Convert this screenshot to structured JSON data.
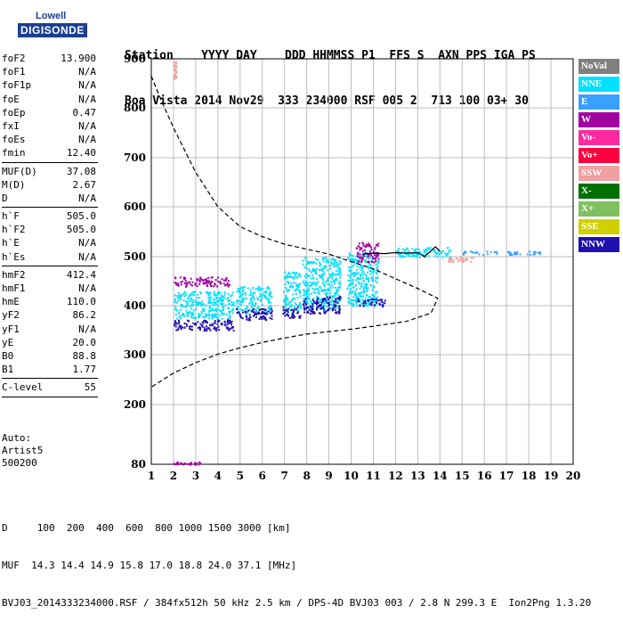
{
  "logo": {
    "line1": "Lowell",
    "line2": "DIGISONDE"
  },
  "header": {
    "line1": "Station    YYYY DAY    DDD HHMMSS P1  FFS S  AXN PPS IGA PS",
    "line2": "Boa Vista 2014 Nov29  333 234000 RSF 005 2  713 100 03+ 30"
  },
  "params": [
    {
      "label": "foF2",
      "value": "13.900"
    },
    {
      "label": "foF1",
      "value": "N/A"
    },
    {
      "label": "foF1p",
      "value": "N/A"
    },
    {
      "label": "foE",
      "value": "N/A"
    },
    {
      "label": "foEp",
      "value": "0.47"
    },
    {
      "label": "fxI",
      "value": "N/A"
    },
    {
      "label": "foEs",
      "value": "N/A"
    },
    {
      "label": "fmin",
      "value": "12.40"
    },
    {
      "label": "MUF(D)",
      "value": "37.08"
    },
    {
      "label": "M(D)",
      "value": "2.67"
    },
    {
      "label": "D",
      "value": "N/A"
    },
    {
      "label": "h`F",
      "value": "505.0"
    },
    {
      "label": "h`F2",
      "value": "505.0"
    },
    {
      "label": "h`E",
      "value": "N/A"
    },
    {
      "label": "h`Es",
      "value": "N/A"
    },
    {
      "label": "hmF2",
      "value": "412.4"
    },
    {
      "label": "hmF1",
      "value": "N/A"
    },
    {
      "label": "hmE",
      "value": "110.0"
    },
    {
      "label": "yF2",
      "value": "86.2"
    },
    {
      "label": "yF1",
      "value": "N/A"
    },
    {
      "label": "yE",
      "value": "20.0"
    },
    {
      "label": "B0",
      "value": "88.8"
    },
    {
      "label": "B1",
      "value": "1.77"
    },
    {
      "label": "C-level",
      "value": "55"
    }
  ],
  "auto": {
    "line1": "Auto:",
    "line2": "Artist5",
    "line3": "500200"
  },
  "legend": [
    {
      "label": "NoVal",
      "color": "#808080"
    },
    {
      "label": "NNE",
      "color": "#00e0ff"
    },
    {
      "label": "E",
      "color": "#3aa0ff"
    },
    {
      "label": "W",
      "color": "#a000a0"
    },
    {
      "label": "Vo-",
      "color": "#ff2aa0"
    },
    {
      "label": "Vo+",
      "color": "#ff0040"
    },
    {
      "label": "SSW",
      "color": "#f0a0a0"
    },
    {
      "label": "X-",
      "color": "#007000"
    },
    {
      "label": "X+",
      "color": "#80c060"
    },
    {
      "label": "SSE",
      "color": "#d0d000"
    },
    {
      "label": "NNW",
      "color": "#2010b0"
    }
  ],
  "footer": {
    "line1": "D     100  200  400  600  800 1000 1500 3000 [km]",
    "line2": "MUF  14.3 14.4 14.9 15.8 17.0 18.8 24.0 37.1 [MHz]",
    "line3": "BVJ03_2014333234000.RSF / 384fx512h 50 kHz 2.5 km / DPS-4D BVJ03 003 / 2.8 N 299.3 E  Ion2Png 1.3.20"
  },
  "chart_data": {
    "type": "scatter",
    "x_ticks": [
      "1",
      "2",
      "3",
      "4",
      "5",
      "6",
      "7",
      "8",
      "9",
      "10",
      "11",
      "12",
      "13",
      "14",
      "15",
      "16",
      "17",
      "18",
      "19",
      "20"
    ],
    "y_ticks": [
      "80",
      "200",
      "300",
      "400",
      "500",
      "600",
      "700",
      "800",
      "900"
    ],
    "xlim": [
      1,
      20
    ],
    "ylim": [
      80,
      900
    ],
    "grid": true,
    "profile_dashed": [
      [
        1.0,
        865
      ],
      [
        1.4,
        820
      ],
      [
        2.0,
        760
      ],
      [
        3.0,
        670
      ],
      [
        4.0,
        600
      ],
      [
        5.0,
        560
      ],
      [
        6.0,
        540
      ],
      [
        7.0,
        525
      ],
      [
        8.0,
        515
      ],
      [
        9.0,
        505
      ],
      [
        10.0,
        490
      ],
      [
        11.0,
        475
      ],
      [
        12.0,
        455
      ],
      [
        13.0,
        435
      ],
      [
        13.9,
        415
      ],
      [
        13.6,
        385
      ],
      [
        12.5,
        368
      ],
      [
        11.0,
        358
      ],
      [
        10.0,
        352
      ],
      [
        9.0,
        347
      ],
      [
        8.0,
        342
      ],
      [
        7.0,
        334
      ],
      [
        6.0,
        325
      ],
      [
        5.0,
        314
      ],
      [
        4.0,
        301
      ],
      [
        3.0,
        284
      ],
      [
        2.0,
        263
      ],
      [
        1.0,
        235
      ]
    ],
    "profile_solid": [
      [
        10.5,
        505
      ],
      [
        11.0,
        507
      ],
      [
        11.5,
        506
      ],
      [
        12.0,
        508
      ],
      [
        12.5,
        507
      ],
      [
        13.0,
        508
      ],
      [
        13.3,
        500
      ],
      [
        13.6,
        512
      ],
      [
        13.8,
        520
      ],
      [
        14.0,
        510
      ]
    ],
    "traces": [
      {
        "color": "#00e0ff",
        "x": [
          2.0,
          4.7
        ],
        "y": [
          375,
          430
        ]
      },
      {
        "color": "#2010b0",
        "x": [
          2.0,
          4.7
        ],
        "y": [
          350,
          372
        ]
      },
      {
        "color": "#a000a0",
        "x": [
          2.0,
          4.5
        ],
        "y": [
          440,
          460
        ]
      },
      {
        "color": "#00e0ff",
        "x": [
          4.8,
          6.4
        ],
        "y": [
          385,
          440
        ]
      },
      {
        "color": "#2010b0",
        "x": [
          4.8,
          6.4
        ],
        "y": [
          370,
          395
        ]
      },
      {
        "color": "#00e0ff",
        "x": [
          6.9,
          7.7
        ],
        "y": [
          390,
          470
        ]
      },
      {
        "color": "#2010b0",
        "x": [
          6.9,
          7.7
        ],
        "y": [
          375,
          400
        ]
      },
      {
        "color": "#00e0ff",
        "x": [
          7.8,
          9.5
        ],
        "y": [
          395,
          500
        ]
      },
      {
        "color": "#2010b0",
        "x": [
          7.8,
          9.5
        ],
        "y": [
          385,
          420
        ]
      },
      {
        "color": "#00e0ff",
        "x": [
          9.8,
          11.2
        ],
        "y": [
          400,
          510
        ]
      },
      {
        "color": "#a000a0",
        "x": [
          10.2,
          11.2
        ],
        "y": [
          490,
          530
        ]
      },
      {
        "color": "#2010b0",
        "x": [
          10.2,
          11.5
        ],
        "y": [
          400,
          415
        ]
      },
      {
        "color": "#00e0ff",
        "x": [
          12.0,
          14.5
        ],
        "y": [
          500,
          520
        ]
      },
      {
        "color": "#f0a0a0",
        "x": [
          14.3,
          15.5
        ],
        "y": [
          490,
          500
        ]
      },
      {
        "color": "#3aa0ff",
        "x": [
          15.0,
          18.5
        ],
        "y": [
          505,
          512
        ]
      },
      {
        "color": "#a000a0",
        "x": [
          2.0,
          3.2
        ],
        "y": [
          80,
          86
        ]
      },
      {
        "color": "#f0a0a0",
        "x": [
          2.0,
          2.1
        ],
        "y": [
          860,
          895
        ]
      }
    ]
  }
}
